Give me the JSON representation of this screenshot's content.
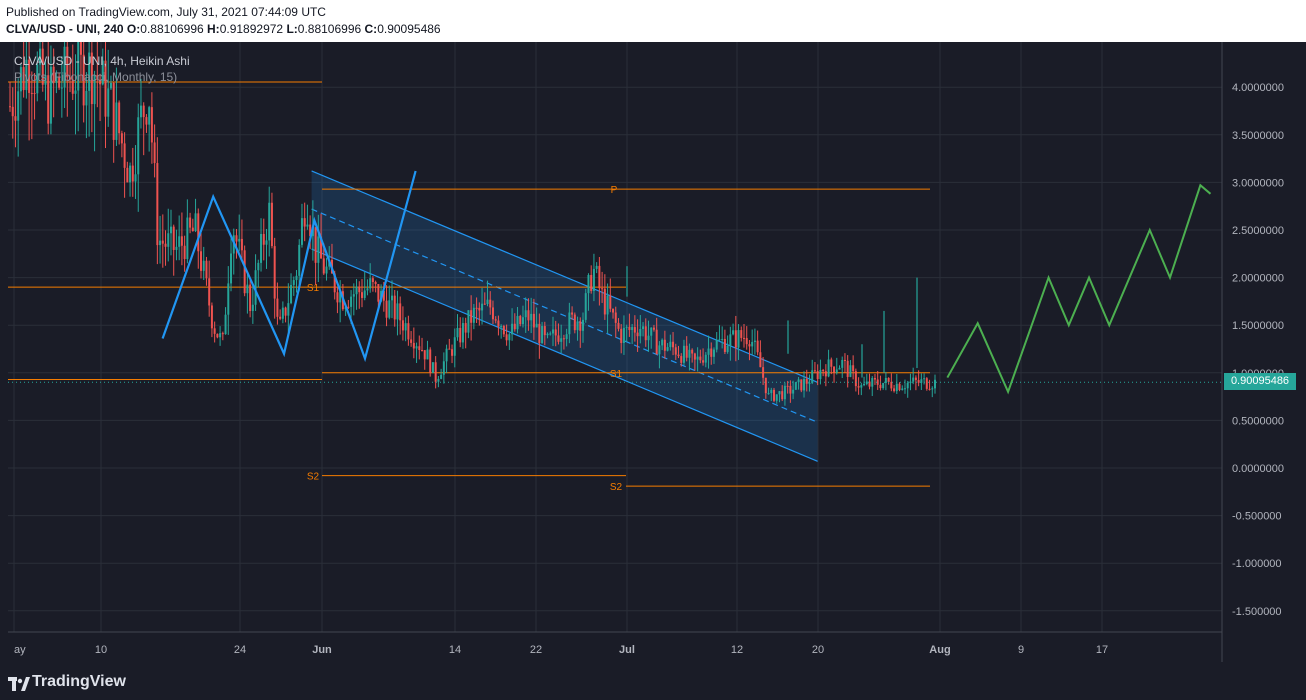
{
  "header": {
    "published": "Published on TradingView.com, July 31, 2021 07:44:09 UTC",
    "symbol_line": "CLVA/USD - UNI, 240",
    "ohlc": {
      "o_label": "O:",
      "o": "0.88106996",
      "h_label": "H:",
      "h": "0.91892972",
      "l_label": "L:",
      "l": "0.88106996",
      "c_label": "C:",
      "c": "0.90095486"
    }
  },
  "legend": {
    "symbol": "CLVA/USD - UNI, 4h, Heikin Ashi",
    "indicator": "Pivots (Fibonacci, Monthly, 15)"
  },
  "price_badge": "0.90095486",
  "footer": {
    "brand": "TradingView"
  },
  "colors": {
    "background": "#1a1c27",
    "up": "#26a69a",
    "down": "#ef5350",
    "channel": "#2196f3",
    "pivot": "#f57c00",
    "projection": "#4caf50"
  },
  "chart_data": {
    "type": "candlestick",
    "style": "Heikin Ashi",
    "interval": "4h",
    "x_axis_labels": [
      "ay",
      "10",
      "24",
      "Jun",
      "14",
      "22",
      "Jul",
      "12",
      "20",
      "Aug",
      "9",
      "17"
    ],
    "y_axis_labels": [
      "4.0000000",
      "3.5000000",
      "3.0000000",
      "2.5000000",
      "2.0000000",
      "1.5000000",
      "1.0000000",
      "0.5000000",
      "0.0000000",
      "-0.500000",
      "-1.000000",
      "-1.500000"
    ],
    "y_ticks": [
      4.0,
      3.5,
      3.0,
      2.5,
      2.0,
      1.5,
      1.0,
      0.5,
      0.0,
      -0.5,
      -1.0,
      -1.5
    ],
    "ylim": [
      -1.75,
      4.5
    ],
    "last_price": 0.90095486,
    "grid": true,
    "pivots": [
      {
        "label": "P",
        "value": 2.93
      },
      {
        "label": "S1",
        "value": 1.9
      },
      {
        "label": "S1",
        "value": 1.0
      },
      {
        "label": "S1",
        "value": 0.93
      },
      {
        "label": "S2",
        "value": -0.08
      },
      {
        "label": "S2",
        "value": -0.19
      }
    ],
    "price_path": [
      [
        0.0,
        3.8
      ],
      [
        0.02,
        4.3
      ],
      [
        0.04,
        3.9
      ],
      [
        0.06,
        4.1
      ],
      [
        0.09,
        4.2
      ],
      [
        0.11,
        3.8
      ],
      [
        0.13,
        3.1
      ],
      [
        0.14,
        3.6
      ],
      [
        0.15,
        4.0
      ],
      [
        0.16,
        2.4
      ],
      [
        0.18,
        2.3
      ],
      [
        0.2,
        2.5
      ],
      [
        0.22,
        1.5
      ],
      [
        0.23,
        1.3
      ],
      [
        0.24,
        2.6
      ],
      [
        0.26,
        1.7
      ],
      [
        0.28,
        2.7
      ],
      [
        0.29,
        1.4
      ],
      [
        0.31,
        2.1
      ],
      [
        0.32,
        2.9
      ],
      [
        0.33,
        2.3
      ],
      [
        0.34,
        2.1
      ],
      [
        0.36,
        1.8
      ],
      [
        0.39,
        1.9
      ],
      [
        0.42,
        1.6
      ],
      [
        0.45,
        1.2
      ],
      [
        0.46,
        0.95
      ],
      [
        0.48,
        1.3
      ],
      [
        0.5,
        1.6
      ],
      [
        0.52,
        1.7
      ],
      [
        0.54,
        1.4
      ],
      [
        0.56,
        1.6
      ],
      [
        0.58,
        1.3
      ],
      [
        0.6,
        1.5
      ],
      [
        0.62,
        1.6
      ],
      [
        0.63,
        2.1
      ],
      [
        0.64,
        1.8
      ],
      [
        0.66,
        1.4
      ],
      [
        0.68,
        1.5
      ],
      [
        0.7,
        1.3
      ],
      [
        0.72,
        1.25
      ],
      [
        0.74,
        1.1
      ],
      [
        0.76,
        1.3
      ],
      [
        0.78,
        1.35
      ],
      [
        0.8,
        1.4
      ],
      [
        0.81,
        1.1
      ],
      [
        0.82,
        0.75
      ],
      [
        0.84,
        0.8
      ],
      [
        0.86,
        0.9
      ],
      [
        0.88,
        1.05
      ],
      [
        0.9,
        1.1
      ],
      [
        0.92,
        0.85
      ],
      [
        0.94,
        0.9
      ],
      [
        0.96,
        0.88
      ],
      [
        0.98,
        0.9
      ],
      [
        1.0,
        0.9
      ]
    ],
    "zigzag": [
      [
        5,
        1.36
      ],
      [
        10,
        2.85
      ],
      [
        17,
        1.2
      ],
      [
        20,
        2.6
      ],
      [
        25,
        1.15
      ],
      [
        30,
        3.12
      ]
    ],
    "channel": {
      "start_day": 30,
      "end_day": 80,
      "upper": [
        3.12,
        0.9
      ],
      "middle": [
        2.72,
        0.48
      ],
      "lower": [
        2.3,
        0.07
      ]
    },
    "projection": [
      [
        78,
        0.95
      ],
      [
        81,
        1.52
      ],
      [
        84,
        0.8
      ],
      [
        88,
        2.0
      ],
      [
        90,
        1.5
      ],
      [
        92,
        2.0
      ],
      [
        94,
        1.5
      ],
      [
        98,
        2.5
      ],
      [
        100,
        2.0
      ],
      [
        103,
        2.97
      ],
      [
        104,
        2.88
      ]
    ]
  }
}
